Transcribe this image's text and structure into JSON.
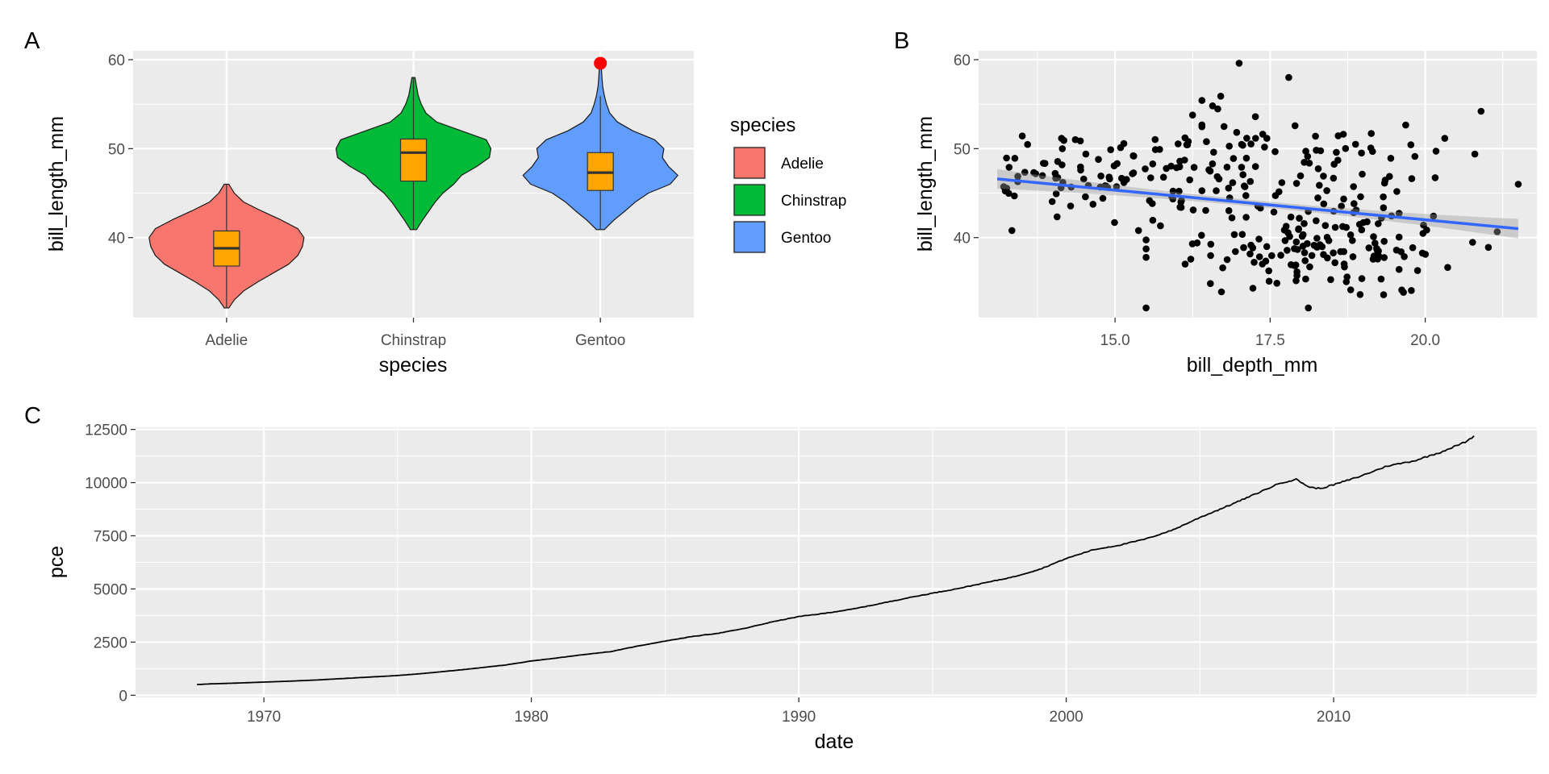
{
  "colors": {
    "panel_bg": "#EBEBEB",
    "grid_major": "#FFFFFF",
    "adelie": "#F8766D",
    "chinstrap": "#00BA38",
    "gentoo": "#619CFF",
    "box_fill": "#FFA500",
    "outlier": "#FF0000",
    "points": "#000000",
    "smooth_line": "#3366FF",
    "ribbon": "#999999",
    "line": "#000000"
  },
  "chart_data": [
    {
      "tag": "A",
      "type": "violin",
      "xlabel": "species",
      "ylabel": "bill_length_mm",
      "categories": [
        "Adelie",
        "Chinstrap",
        "Gentoo"
      ],
      "ylim": [
        31,
        61
      ],
      "yticks": [
        40,
        50,
        60
      ],
      "legend": {
        "title": "species",
        "entries": [
          "Adelie",
          "Chinstrap",
          "Gentoo"
        ],
        "placement": "right"
      },
      "violins": [
        {
          "name": "Adelie",
          "min": 32.1,
          "max": 46.0,
          "density": [
            [
              32.1,
              0.03
            ],
            [
              33,
              0.1
            ],
            [
              34,
              0.22
            ],
            [
              35,
              0.4
            ],
            [
              36,
              0.6
            ],
            [
              37,
              0.8
            ],
            [
              38,
              0.92
            ],
            [
              39,
              0.98
            ],
            [
              40,
              1.0
            ],
            [
              41,
              0.92
            ],
            [
              42,
              0.7
            ],
            [
              43,
              0.45
            ],
            [
              44,
              0.22
            ],
            [
              45,
              0.1
            ],
            [
              46,
              0.03
            ]
          ]
        },
        {
          "name": "Chinstrap",
          "min": 40.9,
          "max": 58.0,
          "density": [
            [
              40.9,
              0.04
            ],
            [
              42,
              0.12
            ],
            [
              43,
              0.2
            ],
            [
              44,
              0.28
            ],
            [
              45,
              0.38
            ],
            [
              46,
              0.52
            ],
            [
              47,
              0.62
            ],
            [
              48,
              0.82
            ],
            [
              49,
              0.98
            ],
            [
              50,
              1.0
            ],
            [
              51,
              0.94
            ],
            [
              52,
              0.62
            ],
            [
              53,
              0.3
            ],
            [
              54,
              0.16
            ],
            [
              55,
              0.1
            ],
            [
              56,
              0.06
            ],
            [
              57,
              0.04
            ],
            [
              58,
              0.02
            ]
          ]
        },
        {
          "name": "Gentoo",
          "min": 40.9,
          "max": 59.6,
          "density": [
            [
              40.9,
              0.05
            ],
            [
              42,
              0.18
            ],
            [
              43,
              0.32
            ],
            [
              44,
              0.45
            ],
            [
              45,
              0.62
            ],
            [
              46,
              0.9
            ],
            [
              47,
              1.0
            ],
            [
              48,
              0.88
            ],
            [
              49,
              0.8
            ],
            [
              50,
              0.82
            ],
            [
              51,
              0.7
            ],
            [
              52,
              0.42
            ],
            [
              53,
              0.22
            ],
            [
              54,
              0.12
            ],
            [
              55,
              0.08
            ],
            [
              56,
              0.05
            ],
            [
              57,
              0.03
            ],
            [
              58,
              0.02
            ],
            [
              59.6,
              0.01
            ]
          ]
        }
      ],
      "boxes": [
        {
          "name": "Adelie",
          "q1": 36.8,
          "median": 38.8,
          "q3": 40.75,
          "whisker_low": 32.1,
          "whisker_high": 46.0
        },
        {
          "name": "Chinstrap",
          "q1": 46.35,
          "median": 49.55,
          "q3": 51.08,
          "whisker_low": 40.9,
          "whisker_high": 58.0
        },
        {
          "name": "Gentoo",
          "q1": 45.3,
          "median": 47.3,
          "q3": 49.55,
          "whisker_low": 40.9,
          "whisker_high": 55.9
        }
      ],
      "outliers": [
        {
          "category": "Gentoo",
          "y": 59.6
        }
      ]
    },
    {
      "tag": "B",
      "type": "scatter",
      "xlabel": "bill_depth_mm",
      "ylabel": "bill_length_mm",
      "xlim": [
        12.8,
        21.8
      ],
      "ylim": [
        31,
        61
      ],
      "xticks": [
        15.0,
        17.5,
        20.0
      ],
      "xtick_labels": [
        "15.0",
        "17.5",
        "20.0"
      ],
      "yticks": [
        40,
        50,
        60
      ],
      "smooth": {
        "x0": 13.1,
        "y0": 46.6,
        "x1": 21.5,
        "y1": 41.0,
        "se_half_width_end": 1.1,
        "se_half_width_mid": 0.35
      }
    },
    {
      "tag": "C",
      "type": "line",
      "xlabel": "date",
      "ylabel": "pce",
      "xlim": [
        1965.2,
        2017.6
      ],
      "ylim": [
        -100,
        12600
      ],
      "xticks": [
        1970,
        1980,
        1990,
        2000,
        2010
      ],
      "yticks": [
        0,
        2500,
        5000,
        7500,
        10000,
        12500
      ],
      "points": [
        [
          1967.5,
          507
        ],
        [
          1968,
          535
        ],
        [
          1969,
          575
        ],
        [
          1970,
          620
        ],
        [
          1971,
          665
        ],
        [
          1972,
          720
        ],
        [
          1973,
          790
        ],
        [
          1974,
          860
        ],
        [
          1975,
          930
        ],
        [
          1976,
          1030
        ],
        [
          1977,
          1150
        ],
        [
          1978,
          1280
        ],
        [
          1979,
          1420
        ],
        [
          1980,
          1610
        ],
        [
          1981,
          1760
        ],
        [
          1982,
          1920
        ],
        [
          1983,
          2060
        ],
        [
          1984,
          2320
        ],
        [
          1985,
          2550
        ],
        [
          1986,
          2760
        ],
        [
          1987,
          2920
        ],
        [
          1988,
          3150
        ],
        [
          1989,
          3450
        ],
        [
          1990,
          3700
        ],
        [
          1991,
          3860
        ],
        [
          1992,
          4050
        ],
        [
          1993,
          4300
        ],
        [
          1994,
          4560
        ],
        [
          1995,
          4800
        ],
        [
          1996,
          5030
        ],
        [
          1997,
          5300
        ],
        [
          1998,
          5560
        ],
        [
          1999,
          5920
        ],
        [
          2000,
          6430
        ],
        [
          2001,
          6840
        ],
        [
          2002,
          7060
        ],
        [
          2003,
          7360
        ],
        [
          2004,
          7780
        ],
        [
          2005,
          8360
        ],
        [
          2006,
          8880
        ],
        [
          2007,
          9420
        ],
        [
          2008,
          9980
        ],
        [
          2008.6,
          10150
        ],
        [
          2009.1,
          9780
        ],
        [
          2009.5,
          9720
        ],
        [
          2010,
          9900
        ],
        [
          2011,
          10300
        ],
        [
          2012,
          10780
        ],
        [
          2013,
          11020
        ],
        [
          2014,
          11430
        ],
        [
          2015,
          11950
        ],
        [
          2015.25,
          12200
        ]
      ]
    }
  ]
}
